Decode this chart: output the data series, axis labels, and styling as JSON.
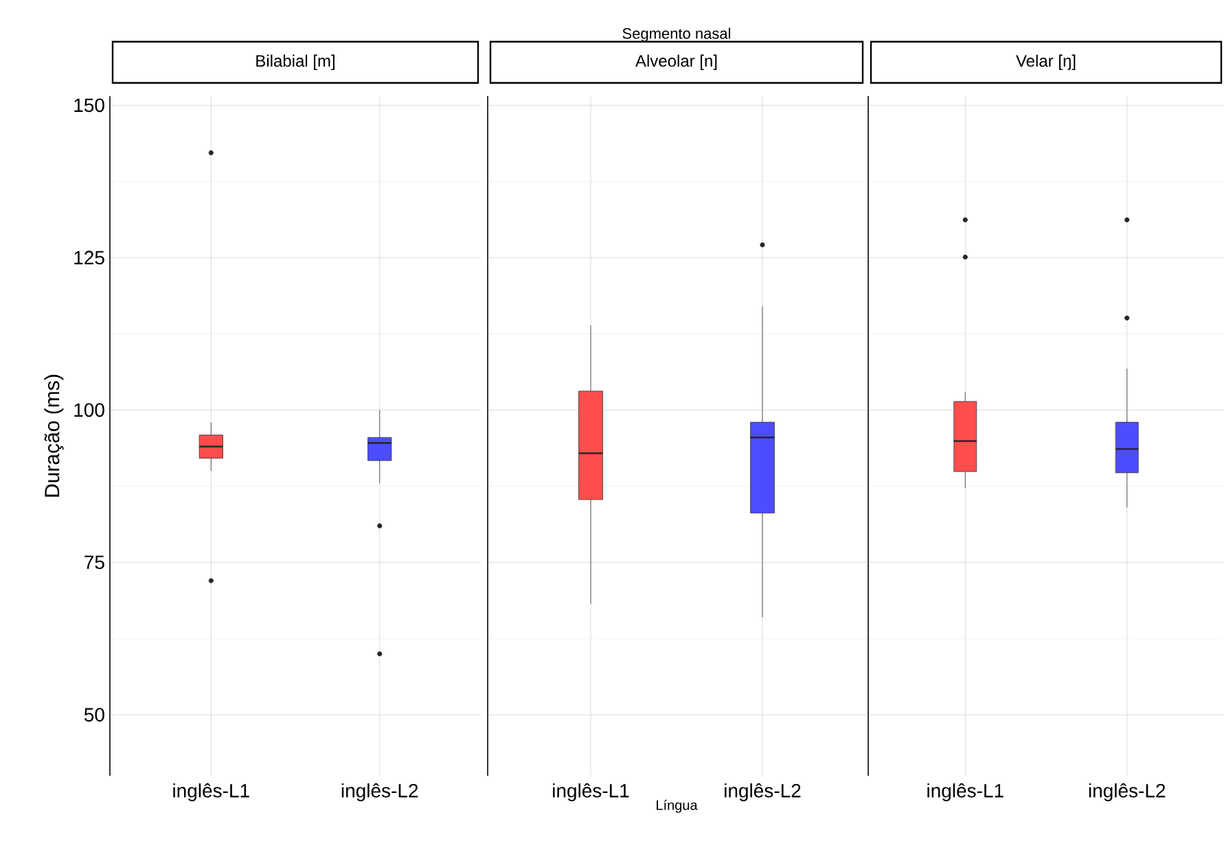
{
  "chart_data": [
    {
      "type": "box",
      "title": "Bilabial [m]",
      "ylabel": "Duração (ms)",
      "categories": [
        "inglês-L1",
        "inglês-L2"
      ],
      "colors": [
        "#ff4d4d",
        "#4d4dff"
      ],
      "boxes": [
        {
          "low": 90,
          "q1": 92.1,
          "median": 94,
          "q3": 95.9,
          "high": 98,
          "outliers": [
            142.2,
            72
          ]
        },
        {
          "low": 88,
          "q1": 91.7,
          "median": 94.6,
          "q3": 95.5,
          "high": 100,
          "outliers": [
            81,
            60
          ]
        }
      ],
      "ylim": [
        40,
        151.5
      ],
      "yticks": [
        50,
        75,
        100,
        125,
        150
      ],
      "grid": true
    },
    {
      "type": "box",
      "title": "Alveolar [n]",
      "xlabel": "Língua",
      "annotations": [
        "Segmento nasal"
      ],
      "categories": [
        "inglês-L1",
        "inglês-L2"
      ],
      "colors": [
        "#ff4d4d",
        "#4d4dff"
      ],
      "boxes": [
        {
          "low": 68.2,
          "q1": 85.3,
          "median": 92.9,
          "q3": 103.1,
          "high": 113.9
        },
        {
          "low": 66,
          "q1": 83.1,
          "median": 95.5,
          "q3": 98,
          "high": 117,
          "outliers": [
            127.1
          ]
        }
      ],
      "ylim": [
        40,
        151.5
      ],
      "yticks": [
        50,
        75,
        100,
        125,
        150
      ],
      "grid": true,
      "tick_labels": "x"
    },
    {
      "type": "box",
      "title": "Velar [ŋ]",
      "categories": [
        "inglês-L1",
        "inglês-L2"
      ],
      "colors": [
        "#ff4d4d",
        "#4d4dff"
      ],
      "boxes": [
        {
          "low": 87.2,
          "q1": 89.9,
          "median": 94.9,
          "q3": 101.4,
          "high": 102.9,
          "outliers": [
            131.2,
            125.1
          ]
        },
        {
          "low": 84,
          "q1": 89.7,
          "median": 93.6,
          "q3": 98,
          "high": 106.8,
          "outliers": [
            131.2,
            115.1
          ]
        }
      ],
      "ylim": [
        40,
        151.5
      ],
      "yticks": [
        50,
        75,
        100,
        125,
        150
      ],
      "grid": true,
      "tick_labels": "x"
    }
  ]
}
